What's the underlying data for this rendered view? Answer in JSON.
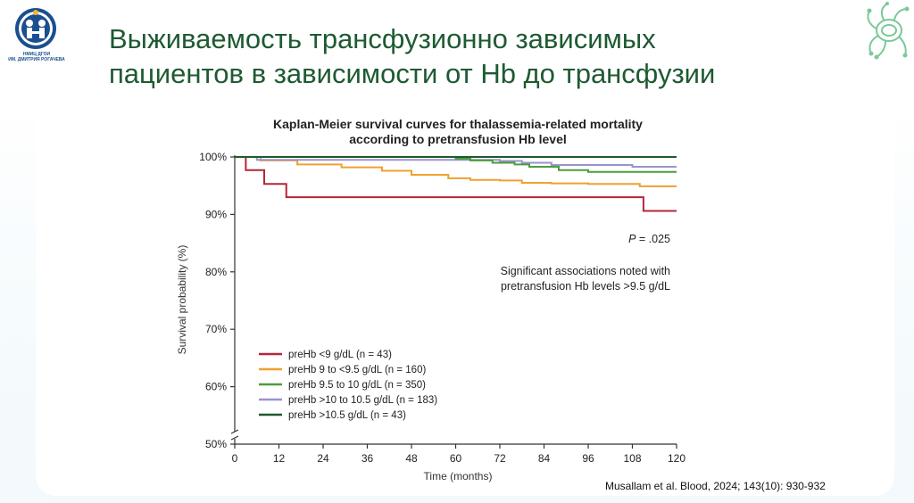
{
  "slide": {
    "title_line1": "Выживаемость трансфузионно зависимых",
    "title_line2": "пациентов в зависимости от Hb до трансфузии",
    "logo_caption_line1": "НМИЦ ДГОИ",
    "logo_caption_line2": "ИМ. ДМИТРИЯ РОГАЧЕВА",
    "citation": "Musallam et al. Blood, 2024; 143(10): 930-932",
    "colors": {
      "title": "#1e5a32",
      "logo": "#1b4f8f",
      "card": "#ffffff",
      "deco": "#7cc89a"
    }
  },
  "chart_data": {
    "type": "line",
    "title_line1": "Kaplan-Meier survival curves for thalassemia-related mortality",
    "title_line2": "according to pretransfusion Hb level",
    "xlabel": "Time (months)",
    "ylabel": "Survival probability (%)",
    "xlim": [
      0,
      120
    ],
    "ylim": [
      50,
      100
    ],
    "x_ticks": [
      0,
      12,
      24,
      36,
      48,
      60,
      72,
      84,
      96,
      108,
      120
    ],
    "y_ticks": [
      {
        "value": 100,
        "label": "100%"
      },
      {
        "value": 90,
        "label": "90%"
      },
      {
        "value": 80,
        "label": "80%"
      },
      {
        "value": 70,
        "label": "70%"
      },
      {
        "value": 60,
        "label": "60%"
      },
      {
        "value": 50,
        "label": "50%"
      }
    ],
    "axis_break": true,
    "grid": false,
    "legend_position": "bottom-left",
    "annotation_p": "P = .025",
    "annotation_note_line1": "Significant associations noted with",
    "annotation_note_line2": "pretransfusion Hb levels >9.5 g/dL",
    "series": [
      {
        "name": "preHb <9 g/dL (n = 43)",
        "color": "#b5253a",
        "steps": [
          [
            0,
            100
          ],
          [
            3,
            97.7
          ],
          [
            8,
            95.3
          ],
          [
            14,
            93.0
          ],
          [
            110,
            93.0
          ],
          [
            111,
            90.6
          ],
          [
            120,
            90.6
          ]
        ]
      },
      {
        "name": "preHb 9 to <9.5 g/dL (n = 160)",
        "color": "#f0a030",
        "steps": [
          [
            0,
            100
          ],
          [
            7,
            99.4
          ],
          [
            17,
            98.7
          ],
          [
            29,
            98.2
          ],
          [
            40,
            97.6
          ],
          [
            48,
            96.9
          ],
          [
            58,
            96.3
          ],
          [
            64,
            96.0
          ],
          [
            72,
            95.9
          ],
          [
            78,
            95.5
          ],
          [
            86,
            95.4
          ],
          [
            96,
            95.3
          ],
          [
            110,
            94.9
          ],
          [
            120,
            94.9
          ]
        ]
      },
      {
        "name": "preHb 9.5 to 10 g/dL (n = 350)",
        "color": "#4a9e3a",
        "steps": [
          [
            0,
            100
          ],
          [
            60,
            99.7
          ],
          [
            64,
            99.4
          ],
          [
            70,
            99.0
          ],
          [
            76,
            98.7
          ],
          [
            80,
            98.3
          ],
          [
            88,
            97.7
          ],
          [
            96,
            97.4
          ],
          [
            120,
            97.4
          ]
        ]
      },
      {
        "name": "preHb >10 to 10.5 g/dL (n = 183)",
        "color": "#9b93cc",
        "steps": [
          [
            0,
            100
          ],
          [
            6,
            99.5
          ],
          [
            36,
            99.5
          ],
          [
            72,
            99.3
          ],
          [
            78,
            99.0
          ],
          [
            86,
            98.6
          ],
          [
            108,
            98.3
          ],
          [
            120,
            98.3
          ]
        ]
      },
      {
        "name": "preHb >10.5 g/dL (n = 43)",
        "color": "#1e5a2c",
        "steps": [
          [
            0,
            100
          ],
          [
            120,
            100
          ]
        ]
      }
    ]
  }
}
